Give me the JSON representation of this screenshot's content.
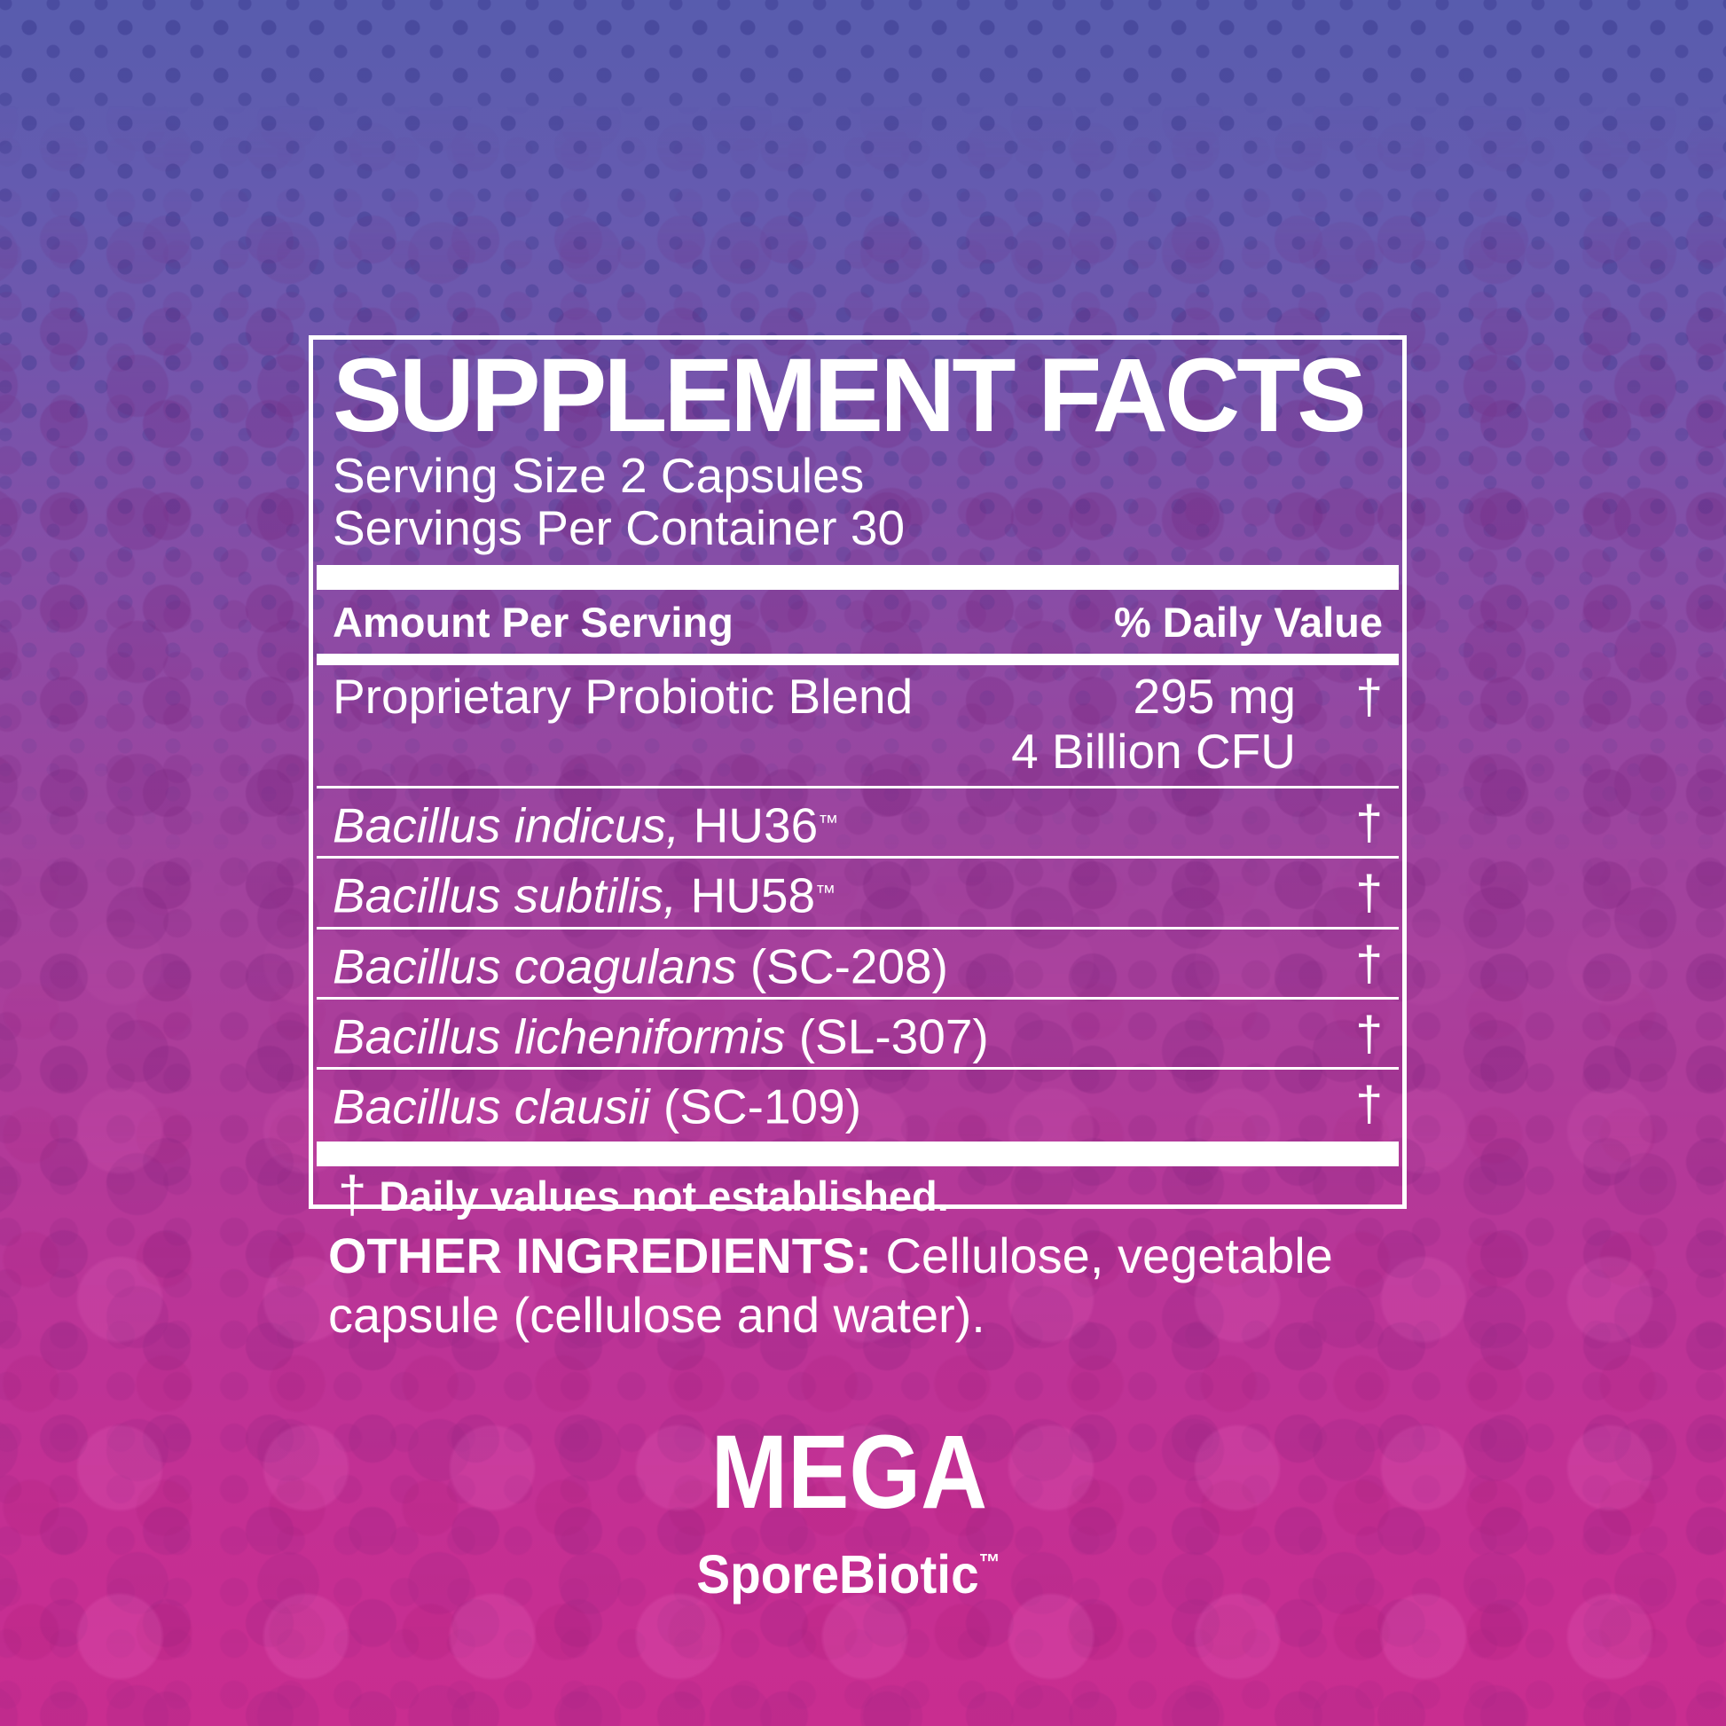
{
  "background": {
    "top_color": "#585cae",
    "bottom_color": "#c92d90",
    "text_color": "#ffffff"
  },
  "panel": {
    "title": "SUPPLEMENT FACTS",
    "serving_size": "Serving Size 2 Capsules",
    "servings_per_container": "Servings Per Container 30",
    "columns": {
      "amount": "Amount Per Serving",
      "daily_value": "% Daily Value"
    },
    "blend": {
      "name": "Proprietary Probiotic Blend",
      "amount": "295 mg",
      "amount2": "4 Billion CFU",
      "dv": "†"
    },
    "rows": [
      {
        "species": "Bacillus indicus,",
        "strain": " HU36",
        "tm": "™",
        "dv": "†"
      },
      {
        "species": "Bacillus subtilis,",
        "strain": " HU58",
        "tm": "™",
        "dv": "†"
      },
      {
        "species": "Bacillus coagulans",
        "strain": " (SC-208)",
        "tm": "",
        "dv": "†"
      },
      {
        "species": "Bacillus licheniformis",
        "strain": " (SL-307)",
        "tm": "",
        "dv": "†"
      },
      {
        "species": "Bacillus clausii",
        "strain": " (SC-109)",
        "tm": "",
        "dv": "†"
      }
    ],
    "footnote": {
      "symbol": "†",
      "text": "Daily values not established."
    }
  },
  "other_ingredients": {
    "label": "OTHER INGREDIENTS:",
    "text": " Cellulose, vegetable capsule (cellulose and water)."
  },
  "brand": {
    "name": "MEGA",
    "sub": "SporeBiotic",
    "tm": "™"
  }
}
